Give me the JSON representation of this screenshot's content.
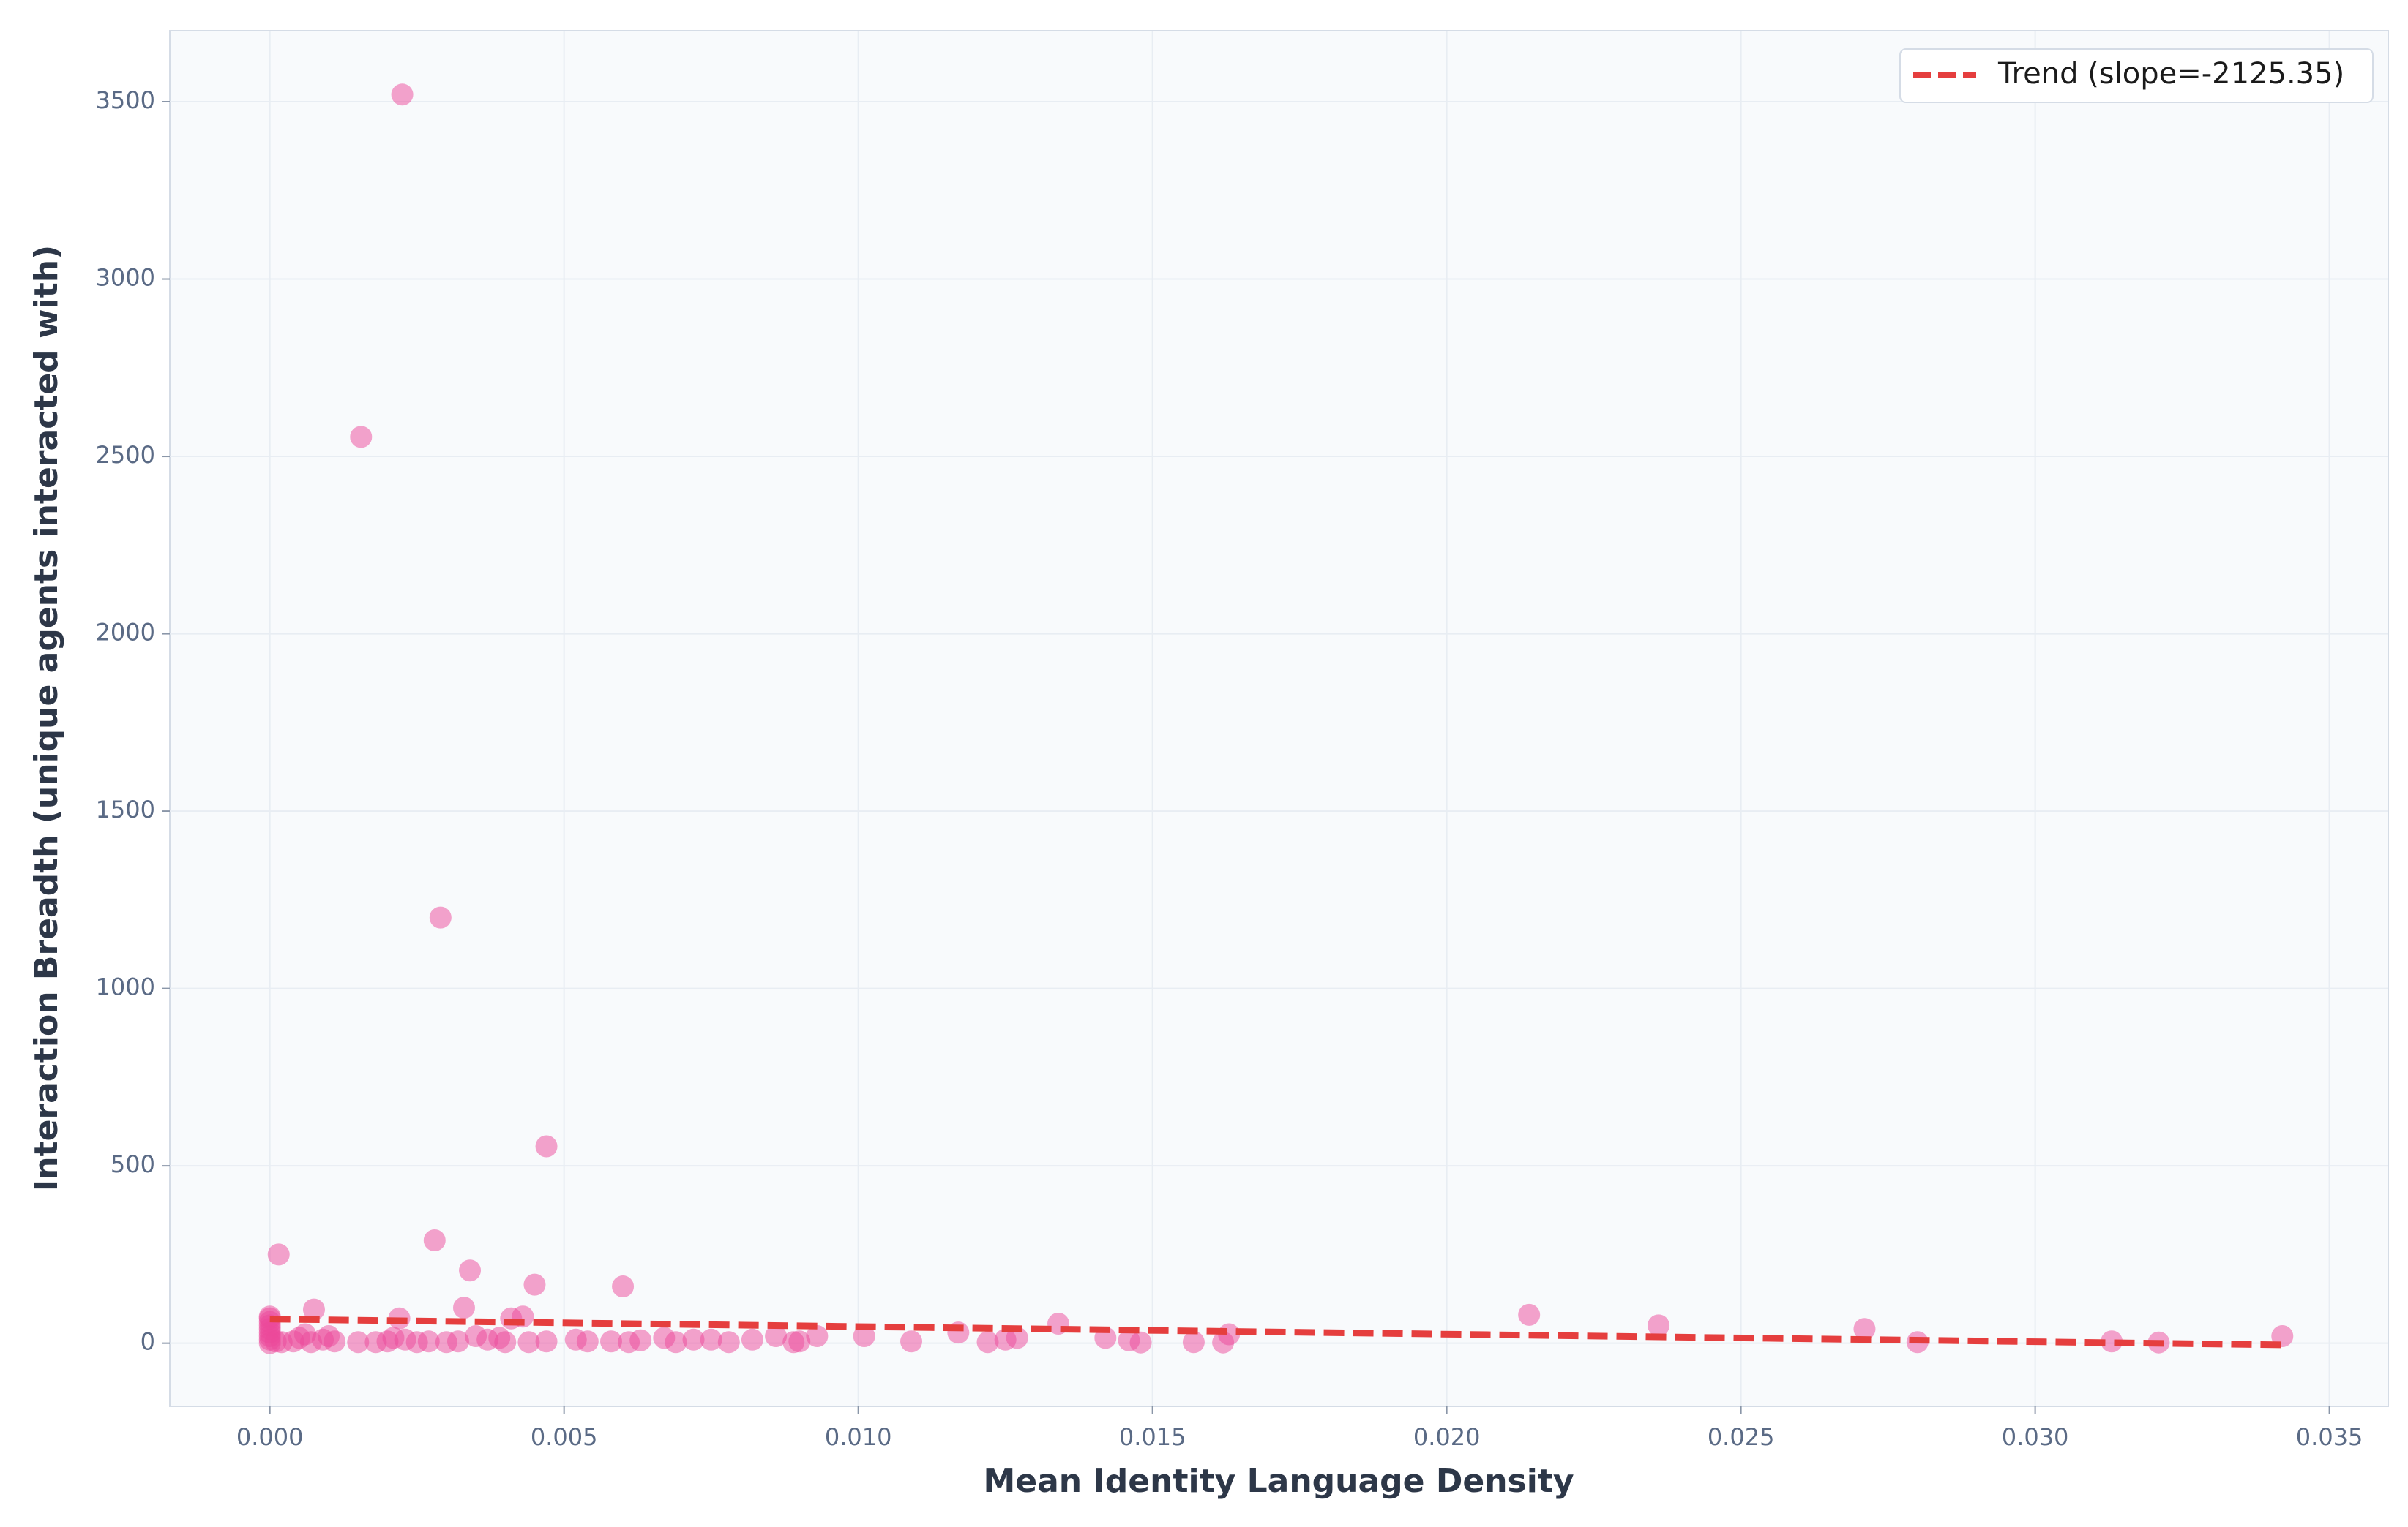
{
  "chart_data": {
    "type": "scatter",
    "xlabel": "Mean Identity Language Density",
    "ylabel": "Interaction Breadth (unique agents interacted with)",
    "xlim": [
      -0.0017,
      0.036
    ],
    "ylim": [
      -178,
      3700
    ],
    "xticks": [
      {
        "value": 0,
        "label": "0.000"
      },
      {
        "value": 0.005,
        "label": "0.005"
      },
      {
        "value": 0.01,
        "label": "0.010"
      },
      {
        "value": 0.015,
        "label": "0.015"
      },
      {
        "value": 0.02,
        "label": "0.020"
      },
      {
        "value": 0.025,
        "label": "0.025"
      },
      {
        "value": 0.03,
        "label": "0.030"
      },
      {
        "value": 0.035,
        "label": "0.035"
      }
    ],
    "yticks": [
      0,
      500,
      1000,
      1500,
      2000,
      2500,
      3000,
      3500
    ],
    "grid": true,
    "legend": "upper right",
    "points": {
      "color": "#ec4899",
      "x": [
        0.00225,
        0.00155,
        0.0029,
        0.0047,
        0.00015,
        0.0028,
        0.0034,
        0.0045,
        0.006,
        0.0033,
        0.00075,
        0.0041,
        0.0043,
        0.0022,
        0.0214,
        0.0236,
        0.0271,
        0.0134,
        0.0117,
        0.0163,
        0.0342,
        0.0101,
        0.0313,
        0.0321,
        0.028,
        0.0157,
        0.0162,
        0.0148,
        0.0146,
        0.0142,
        0.0127,
        0.0125,
        0.0122,
        0.0109,
        0.0093,
        0.009,
        0.0089,
        0.0086,
        0.0082,
        0.0078,
        0.0075,
        0.0072,
        0.0069,
        0.0067,
        0.0063,
        0.0061,
        0.0058,
        0.0054,
        0.0052,
        0.0047,
        0.0044,
        0.004,
        0.0037,
        0.0035,
        0.0032,
        0.003,
        0.0027,
        0.0025,
        0.0023,
        0.002,
        0.0018,
        0.0015,
        0.0011,
        0.001,
        0.0009,
        0.0007,
        0.0005,
        0.0004,
        0.0002,
        0,
        0,
        0,
        0,
        0,
        0,
        0,
        0,
        0,
        0.0001,
        0.0006,
        0.0021,
        0.0039
      ],
      "values": [
        3520,
        2555,
        1200,
        555,
        250,
        290,
        205,
        165,
        160,
        100,
        95,
        70,
        75,
        70,
        80,
        50,
        40,
        55,
        30,
        25,
        20,
        20,
        5,
        2,
        3,
        3,
        2,
        2,
        8,
        15,
        15,
        10,
        3,
        5,
        20,
        5,
        3,
        20,
        10,
        3,
        10,
        10,
        3,
        15,
        8,
        3,
        5,
        5,
        10,
        5,
        3,
        3,
        10,
        20,
        5,
        3,
        5,
        3,
        10,
        5,
        3,
        3,
        5,
        20,
        10,
        3,
        15,
        5,
        3,
        0,
        10,
        20,
        30,
        40,
        50,
        60,
        70,
        75,
        5,
        25,
        15,
        15
      ]
    },
    "trend": {
      "name": "Trend (slope=-2125.35)",
      "color": "#e53e3e",
      "x": [
        0,
        0.0342
      ],
      "values": [
        68,
        -4.7
      ]
    }
  }
}
